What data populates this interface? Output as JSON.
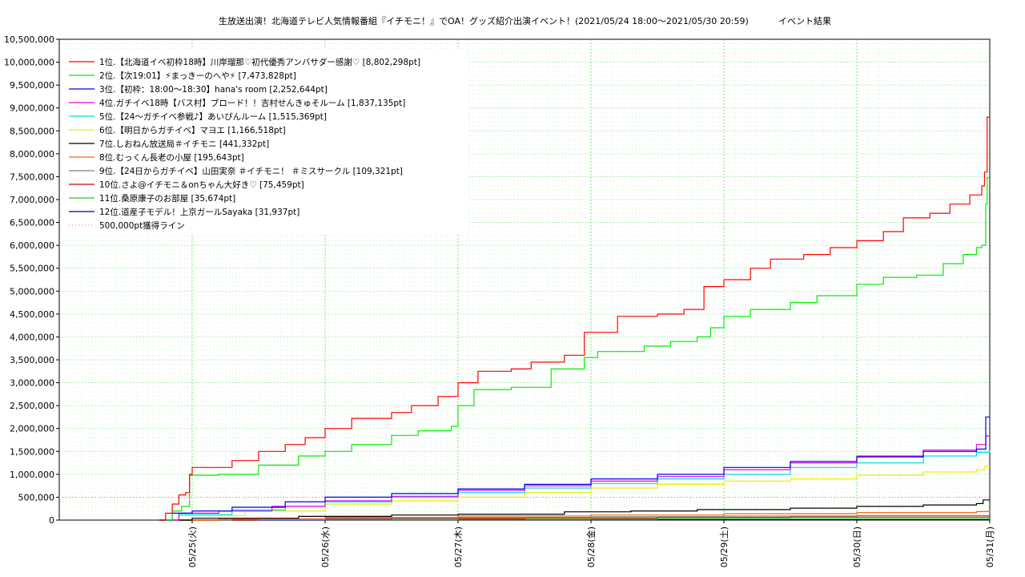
{
  "chart_data": {
    "type": "line",
    "title": "生放送出演！北海道テレビ人気情報番組『イチモニ！』でOA！グッズ紹介出演イベント！(2021/05/24 18:00〜2021/05/30 20:59)",
    "title_suffix": "イベント結果",
    "xlabel": "",
    "ylabel": "",
    "ylim": [
      0,
      10500000
    ],
    "xlim": [
      24.0,
      31.0
    ],
    "grid": true,
    "legend_position": "top-left",
    "yticks": [
      "0",
      "500,000",
      "1,000,000",
      "1,500,000",
      "2,000,000",
      "2,500,000",
      "3,000,000",
      "3,500,000",
      "4,000,000",
      "4,500,000",
      "5,000,000",
      "5,500,000",
      "6,000,000",
      "6,500,000",
      "7,000,000",
      "7,500,000",
      "8,000,000",
      "8,500,000",
      "9,000,000",
      "9,500,000",
      "10,000,000",
      "10,500,000"
    ],
    "xticks": [
      {
        "x": 25,
        "label": "05/25(火)"
      },
      {
        "x": 26,
        "label": "05/26(水)"
      },
      {
        "x": 27,
        "label": "05/27(木)"
      },
      {
        "x": 28,
        "label": "05/28(金)"
      },
      {
        "x": 29,
        "label": "05/29(土)"
      },
      {
        "x": 30,
        "label": "05/30(日)"
      },
      {
        "x": 31,
        "label": "05/31(月)"
      }
    ],
    "series": [
      {
        "name": "1位.【北海道イベ初枠18時】川岸瑠那♡初代優秀アンバサダー感謝♡ [8,802,298pt]",
        "color": "#ff0000",
        "points": [
          [
            24.75,
            0
          ],
          [
            24.8,
            150000
          ],
          [
            24.85,
            350000
          ],
          [
            24.9,
            550000
          ],
          [
            24.95,
            600000
          ],
          [
            24.98,
            1000000
          ],
          [
            25.0,
            1150000
          ],
          [
            25.3,
            1300000
          ],
          [
            25.5,
            1500000
          ],
          [
            25.7,
            1650000
          ],
          [
            25.85,
            1800000
          ],
          [
            26.0,
            2000000
          ],
          [
            26.2,
            2220000
          ],
          [
            26.5,
            2350000
          ],
          [
            26.65,
            2500000
          ],
          [
            26.85,
            2700000
          ],
          [
            27.0,
            3000000
          ],
          [
            27.15,
            3250000
          ],
          [
            27.4,
            3300000
          ],
          [
            27.55,
            3450000
          ],
          [
            27.8,
            3600000
          ],
          [
            27.95,
            4100000
          ],
          [
            28.2,
            4450000
          ],
          [
            28.5,
            4500000
          ],
          [
            28.7,
            4600000
          ],
          [
            28.85,
            5100000
          ],
          [
            29.0,
            5250000
          ],
          [
            29.2,
            5500000
          ],
          [
            29.35,
            5700000
          ],
          [
            29.6,
            5800000
          ],
          [
            29.8,
            5950000
          ],
          [
            30.0,
            6100000
          ],
          [
            30.2,
            6300000
          ],
          [
            30.35,
            6600000
          ],
          [
            30.55,
            6700000
          ],
          [
            30.7,
            6900000
          ],
          [
            30.85,
            7100000
          ],
          [
            30.94,
            7300000
          ],
          [
            30.96,
            7600000
          ],
          [
            30.98,
            8800000
          ],
          [
            31.0,
            8802298
          ]
        ]
      },
      {
        "name": "2位.【次19:01】⚡まっきーのへや⚡ [7,473,828pt]",
        "color": "#00ee00",
        "points": [
          [
            24.75,
            0
          ],
          [
            24.85,
            200000
          ],
          [
            24.92,
            300000
          ],
          [
            24.98,
            980000
          ],
          [
            25.2,
            1000000
          ],
          [
            25.5,
            1200000
          ],
          [
            25.8,
            1400000
          ],
          [
            26.0,
            1500000
          ],
          [
            26.2,
            1650000
          ],
          [
            26.5,
            1850000
          ],
          [
            26.7,
            1950000
          ],
          [
            26.95,
            2050000
          ],
          [
            27.0,
            2500000
          ],
          [
            27.12,
            2850000
          ],
          [
            27.4,
            2900000
          ],
          [
            27.7,
            3300000
          ],
          [
            27.95,
            3550000
          ],
          [
            28.05,
            3680000
          ],
          [
            28.4,
            3800000
          ],
          [
            28.6,
            3900000
          ],
          [
            28.8,
            4000000
          ],
          [
            28.9,
            4200000
          ],
          [
            29.0,
            4450000
          ],
          [
            29.2,
            4600000
          ],
          [
            29.5,
            4750000
          ],
          [
            29.7,
            4900000
          ],
          [
            30.0,
            5150000
          ],
          [
            30.2,
            5300000
          ],
          [
            30.45,
            5350000
          ],
          [
            30.65,
            5600000
          ],
          [
            30.8,
            5800000
          ],
          [
            30.9,
            5950000
          ],
          [
            30.94,
            6000000
          ],
          [
            30.97,
            6900000
          ],
          [
            30.98,
            7473828
          ],
          [
            31.0,
            7473828
          ]
        ]
      },
      {
        "name": "3位.【初枠：18:00〜18:30】hana's room [2,252,644pt]",
        "color": "#0000ee",
        "points": [
          [
            24.75,
            0
          ],
          [
            24.85,
            150000
          ],
          [
            25.0,
            200000
          ],
          [
            25.3,
            280000
          ],
          [
            25.7,
            400000
          ],
          [
            26.0,
            500000
          ],
          [
            26.5,
            580000
          ],
          [
            27.0,
            680000
          ],
          [
            27.5,
            780000
          ],
          [
            28.0,
            900000
          ],
          [
            28.5,
            1000000
          ],
          [
            29.0,
            1150000
          ],
          [
            29.5,
            1280000
          ],
          [
            30.0,
            1380000
          ],
          [
            30.5,
            1500000
          ],
          [
            30.9,
            1550000
          ],
          [
            30.97,
            2252644
          ],
          [
            31.0,
            2252644
          ]
        ]
      },
      {
        "name": "4位.ガチイベ18時【バス村】ブロード！！吉村せんきゅそルーム [1,837,135pt]",
        "color": "#ee00ee",
        "points": [
          [
            24.75,
            0
          ],
          [
            24.9,
            150000
          ],
          [
            25.2,
            200000
          ],
          [
            25.6,
            300000
          ],
          [
            26.0,
            420000
          ],
          [
            26.5,
            520000
          ],
          [
            27.0,
            650000
          ],
          [
            27.5,
            750000
          ],
          [
            28.0,
            850000
          ],
          [
            28.5,
            950000
          ],
          [
            29.0,
            1100000
          ],
          [
            29.5,
            1250000
          ],
          [
            30.0,
            1400000
          ],
          [
            30.5,
            1530000
          ],
          [
            30.9,
            1650000
          ],
          [
            30.97,
            1837135
          ],
          [
            31.0,
            1837135
          ]
        ]
      },
      {
        "name": "5位.【24〜ガチイベ参戦♪】あいぴんルーム [1,515,369pt]",
        "color": "#00dddd",
        "points": [
          [
            24.75,
            0
          ],
          [
            24.9,
            120000
          ],
          [
            25.3,
            220000
          ],
          [
            25.7,
            300000
          ],
          [
            26.0,
            400000
          ],
          [
            26.5,
            500000
          ],
          [
            27.0,
            600000
          ],
          [
            27.5,
            700000
          ],
          [
            28.0,
            800000
          ],
          [
            28.5,
            900000
          ],
          [
            29.0,
            1000000
          ],
          [
            29.5,
            1150000
          ],
          [
            30.0,
            1250000
          ],
          [
            30.5,
            1400000
          ],
          [
            30.9,
            1480000
          ],
          [
            31.0,
            1515369
          ]
        ]
      },
      {
        "name": "6位.【明日からガチイベ】マヨエ [1,166,518pt]",
        "color": "#eeee00",
        "points": [
          [
            24.75,
            0
          ],
          [
            24.9,
            100000
          ],
          [
            25.4,
            200000
          ],
          [
            26.0,
            350000
          ],
          [
            26.5,
            420000
          ],
          [
            27.0,
            500000
          ],
          [
            27.5,
            600000
          ],
          [
            28.0,
            700000
          ],
          [
            28.5,
            780000
          ],
          [
            29.0,
            850000
          ],
          [
            29.5,
            900000
          ],
          [
            30.0,
            980000
          ],
          [
            30.5,
            1050000
          ],
          [
            30.9,
            1100000
          ],
          [
            30.96,
            1166518
          ],
          [
            31.0,
            1166518
          ]
        ]
      },
      {
        "name": "7位.しおねん放送局＃イチモニ [441,332pt]",
        "color": "#000000",
        "points": [
          [
            24.75,
            0
          ],
          [
            25.0,
            40000
          ],
          [
            25.8,
            80000
          ],
          [
            26.5,
            110000
          ],
          [
            27.0,
            130000
          ],
          [
            27.8,
            180000
          ],
          [
            28.3,
            200000
          ],
          [
            28.8,
            230000
          ],
          [
            29.5,
            260000
          ],
          [
            30.0,
            300000
          ],
          [
            30.5,
            330000
          ],
          [
            30.9,
            360000
          ],
          [
            30.95,
            441332
          ],
          [
            31.0,
            441332
          ]
        ]
      },
      {
        "name": "8位.むっくん長老の小屋 [195,643pt]",
        "color": "#ff6600",
        "points": [
          [
            24.75,
            0
          ],
          [
            25.2,
            30000
          ],
          [
            26.0,
            60000
          ],
          [
            27.0,
            90000
          ],
          [
            28.0,
            110000
          ],
          [
            29.0,
            140000
          ],
          [
            30.0,
            165000
          ],
          [
            30.9,
            185000
          ],
          [
            31.0,
            195643
          ]
        ]
      },
      {
        "name": "9位.【24日からガチイベ】山田実奈 ＃イチモニ！ ＃ミスサークル [109,321pt]",
        "color": "#808080",
        "points": [
          [
            24.75,
            0
          ],
          [
            25.3,
            20000
          ],
          [
            26.0,
            40000
          ],
          [
            27.0,
            60000
          ],
          [
            28.0,
            75000
          ],
          [
            29.0,
            88000
          ],
          [
            30.0,
            98000
          ],
          [
            31.0,
            109321
          ]
        ]
      },
      {
        "name": "10位.さよ@イチモニ＆onちゃん大好き♡ [75,459pt]",
        "color": "#cc0000",
        "points": [
          [
            24.75,
            0
          ],
          [
            25.5,
            20000
          ],
          [
            26.5,
            35000
          ],
          [
            27.5,
            48000
          ],
          [
            28.5,
            58000
          ],
          [
            29.5,
            66000
          ],
          [
            31.0,
            75459
          ]
        ]
      },
      {
        "name": "11位.桑原康子のお部屋 [35,674pt]",
        "color": "#22cc22",
        "points": [
          [
            24.75,
            0
          ],
          [
            25.5,
            10000
          ],
          [
            27.0,
            20000
          ],
          [
            28.5,
            28000
          ],
          [
            31.0,
            35674
          ]
        ]
      },
      {
        "name": "12位.道産子モデル！上京ガールSayaka [31,937pt]",
        "color": "#0000aa",
        "points": [
          [
            24.75,
            0
          ],
          [
            26.0,
            10000
          ],
          [
            28.0,
            20000
          ],
          [
            31.0,
            31937
          ]
        ]
      }
    ],
    "reference_line": {
      "name": "500,000pt獲得ライン",
      "value": 500000,
      "color": "#ff8888",
      "style": "dotted"
    }
  }
}
